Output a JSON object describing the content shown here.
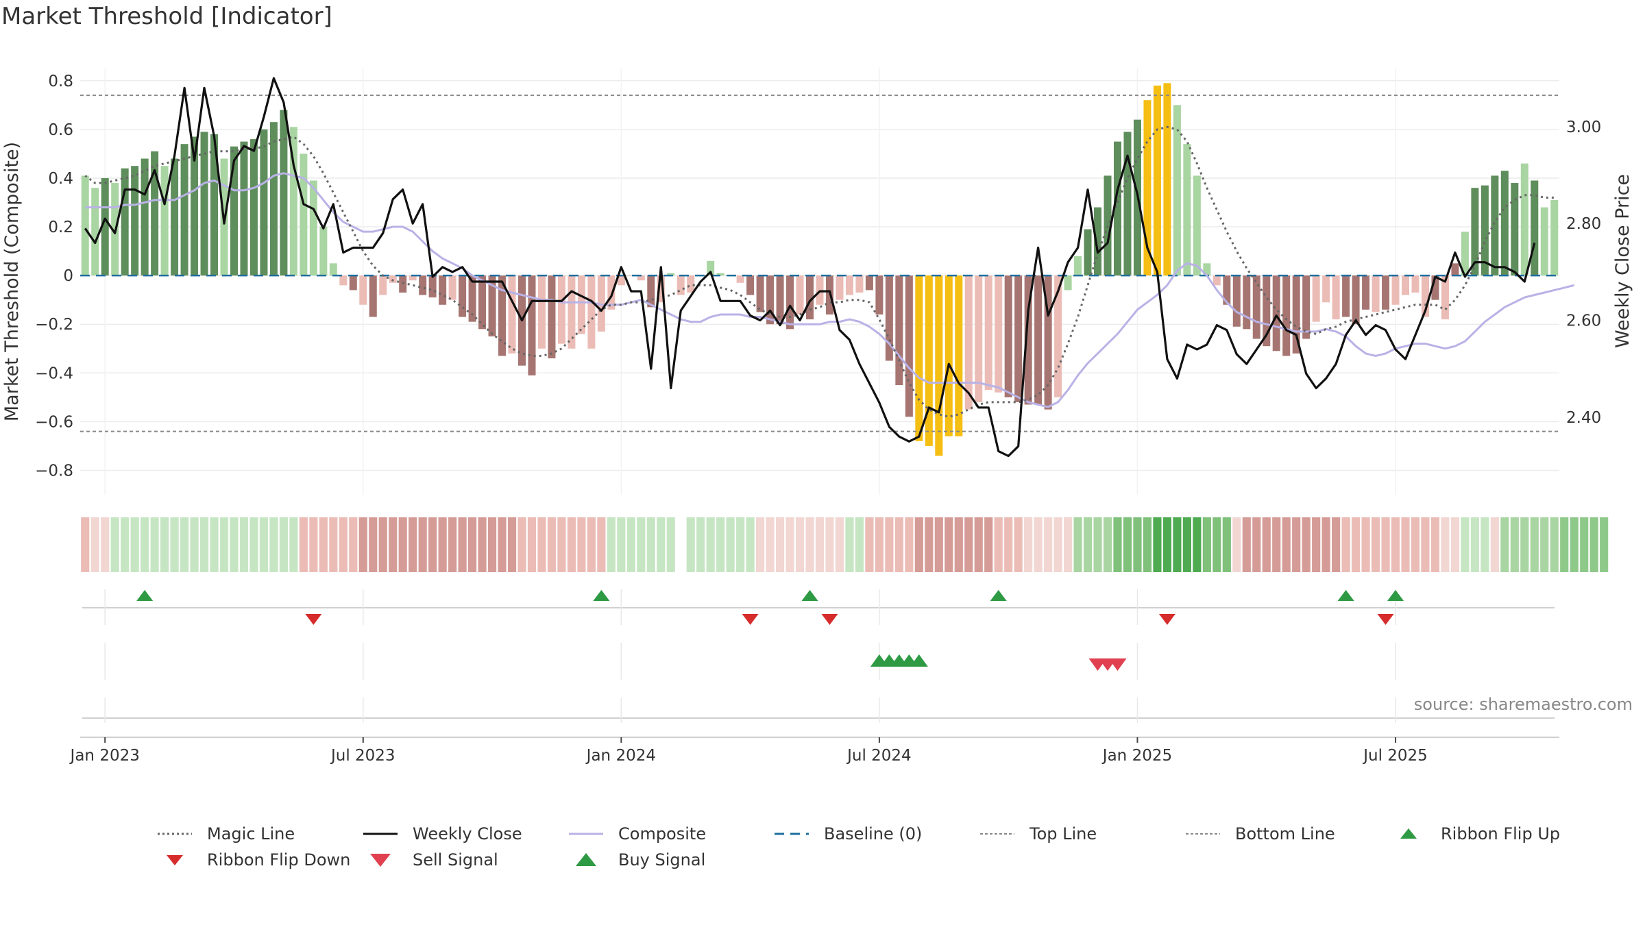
{
  "title": "Market Threshold [Indicator]",
  "source": "source: sharemaestro.com",
  "chart_data": {
    "type": "bar",
    "title": "Market Threshold [Indicator]",
    "ylabel": "Market Threshold (Composite)",
    "y2label": "Weekly Close Price",
    "ylim": [
      -0.9,
      0.85
    ],
    "y2lim": [
      2.24,
      3.12
    ],
    "yticks": [
      "0.8",
      "0.6",
      "0.4",
      "0.2",
      "0",
      "−0.2",
      "−0.4",
      "−0.6",
      "−0.8"
    ],
    "y2ticks": [
      "3.00",
      "2.80",
      "2.60",
      "2.40"
    ],
    "xticks": [
      "Jan 2023",
      "Jul 2023",
      "Jan 2024",
      "Jul 2024",
      "Jan 2025",
      "Jul 2025"
    ],
    "top_line": 0.74,
    "bottom_line": -0.64,
    "baseline": 0,
    "composite_values": [
      0.41,
      0.36,
      0.4,
      0.38,
      0.44,
      0.45,
      0.48,
      0.51,
      0.45,
      0.48,
      0.54,
      0.57,
      0.59,
      0.58,
      0.48,
      0.53,
      0.55,
      0.56,
      0.6,
      0.63,
      0.68,
      0.61,
      0.5,
      0.39,
      0.2,
      0.05,
      -0.04,
      -0.06,
      -0.12,
      -0.17,
      -0.08,
      -0.03,
      -0.07,
      -0.02,
      -0.08,
      -0.09,
      -0.12,
      -0.1,
      -0.17,
      -0.19,
      -0.22,
      -0.25,
      -0.33,
      -0.32,
      -0.37,
      -0.41,
      -0.3,
      -0.34,
      -0.28,
      -0.3,
      -0.24,
      -0.3,
      -0.23,
      -0.14,
      -0.04,
      0.0,
      -0.02,
      -0.13,
      -0.11,
      0.01,
      -0.08,
      -0.07,
      0.0,
      0.06,
      0.01,
      0.0,
      -0.03,
      -0.08,
      -0.15,
      -0.2,
      -0.2,
      -0.22,
      -0.16,
      -0.18,
      -0.12,
      -0.16,
      -0.1,
      -0.08,
      -0.07,
      -0.06,
      -0.16,
      -0.35,
      -0.45,
      -0.58,
      -0.68,
      -0.7,
      -0.74,
      -0.66,
      -0.66,
      -0.55,
      -0.52,
      -0.47,
      -0.48,
      -0.5,
      -0.52,
      -0.53,
      -0.53,
      -0.55,
      -0.5,
      -0.06,
      0.08,
      0.19,
      0.28,
      0.41,
      0.55,
      0.59,
      0.64,
      0.72,
      0.78,
      0.79,
      0.7,
      0.54,
      0.41,
      0.05,
      -0.04,
      -0.12,
      -0.21,
      -0.22,
      -0.26,
      -0.29,
      -0.31,
      -0.33,
      -0.32,
      -0.26,
      -0.19,
      -0.11,
      -0.18,
      -0.17,
      -0.2,
      -0.14,
      -0.15,
      -0.14,
      -0.12,
      -0.08,
      -0.07,
      -0.17,
      -0.1,
      -0.18,
      0.05,
      0.18,
      0.36,
      0.37,
      0.41,
      0.43,
      0.38,
      0.46,
      0.39,
      0.28,
      0.31
    ],
    "composite_bar_colors": [
      "#a9d5a2",
      "#a9d5a2",
      "#5e8e5b",
      "#a9d5a2",
      "#5e8e5b",
      "#5e8e5b",
      "#5e8e5b",
      "#5e8e5b",
      "#a9d5a2",
      "#5e8e5b",
      "#5e8e5b",
      "#5e8e5b",
      "#5e8e5b",
      "#5e8e5b",
      "#a9d5a2",
      "#5e8e5b",
      "#5e8e5b",
      "#5e8e5b",
      "#5e8e5b",
      "#5e8e5b",
      "#5e8e5b",
      "#a9d5a2",
      "#a9d5a2",
      "#a9d5a2",
      "#a9d5a2",
      "#a9d5a2",
      "#ebbcb6",
      "#a67571",
      "#ebbcb6",
      "#a67571",
      "#ebbcb6",
      "#ebbcb6",
      "#a67571",
      "#ebbcb6",
      "#a67571",
      "#a67571",
      "#a67571",
      "#ebbcb6",
      "#a67571",
      "#a67571",
      "#a67571",
      "#a67571",
      "#a67571",
      "#ebbcb6",
      "#a67571",
      "#a67571",
      "#ebbcb6",
      "#a67571",
      "#ebbcb6",
      "#ebbcb6",
      "#ebbcb6",
      "#ebbcb6",
      "#ebbcb6",
      "#ebbcb6",
      "#ebbcb6",
      "#ebbcb6",
      "#ebbcb6",
      "#a67571",
      "#ebbcb6",
      "#a9d5a2",
      "#ebbcb6",
      "#ebbcb6",
      "#a9d5a2",
      "#a9d5a2",
      "#a9d5a2",
      "#a9d5a2",
      "#ebbcb6",
      "#a67571",
      "#a67571",
      "#a67571",
      "#a67571",
      "#a67571",
      "#ebbcb6",
      "#a67571",
      "#ebbcb6",
      "#a67571",
      "#ebbcb6",
      "#ebbcb6",
      "#ebbcb6",
      "#a67571",
      "#a67571",
      "#a67571",
      "#a67571",
      "#a67571",
      "#f5be12",
      "#f5be12",
      "#f5be12",
      "#f5be12",
      "#f5be12",
      "#ebbcb6",
      "#ebbcb6",
      "#ebbcb6",
      "#ebbcb6",
      "#a67571",
      "#a67571",
      "#a67571",
      "#a67571",
      "#a67571",
      "#ebbcb6",
      "#a9d5a2",
      "#a9d5a2",
      "#5e8e5b",
      "#5e8e5b",
      "#5e8e5b",
      "#5e8e5b",
      "#5e8e5b",
      "#5e8e5b",
      "#f5be12",
      "#f5be12",
      "#f5be12",
      "#a9d5a2",
      "#a9d5a2",
      "#a9d5a2",
      "#a9d5a2",
      "#ebbcb6",
      "#a67571",
      "#a67571",
      "#a67571",
      "#a67571",
      "#a67571",
      "#a67571",
      "#a67571",
      "#a67571",
      "#a67571",
      "#ebbcb6",
      "#ebbcb6",
      "#ebbcb6",
      "#a67571",
      "#a67571",
      "#a67571",
      "#ebbcb6",
      "#a67571",
      "#ebbcb6",
      "#ebbcb6",
      "#ebbcb6",
      "#ebbcb6",
      "#a67571",
      "#ebbcb6",
      "#a67571",
      "#a9d5a2",
      "#5e8e5b",
      "#5e8e5b",
      "#5e8e5b",
      "#5e8e5b",
      "#5e8e5b",
      "#a9d5a2",
      "#5e8e5b",
      "#a9d5a2",
      "#a9d5a2",
      "#5e8e5b"
    ],
    "magic_line": [
      0.41,
      0.38,
      0.38,
      0.39,
      0.4,
      0.41,
      0.43,
      0.45,
      0.46,
      0.47,
      0.48,
      0.49,
      0.5,
      0.51,
      0.51,
      0.51,
      0.52,
      0.52,
      0.53,
      0.55,
      0.56,
      0.57,
      0.54,
      0.49,
      0.42,
      0.34,
      0.26,
      0.18,
      0.1,
      0.04,
      0.0,
      -0.02,
      -0.03,
      -0.04,
      -0.05,
      -0.06,
      -0.08,
      -0.1,
      -0.13,
      -0.16,
      -0.2,
      -0.24,
      -0.27,
      -0.3,
      -0.32,
      -0.33,
      -0.33,
      -0.32,
      -0.3,
      -0.26,
      -0.22,
      -0.18,
      -0.14,
      -0.12,
      -0.12,
      -0.11,
      -0.11,
      -0.1,
      -0.09,
      -0.08,
      -0.06,
      -0.04,
      -0.04,
      -0.04,
      -0.05,
      -0.06,
      -0.08,
      -0.11,
      -0.14,
      -0.16,
      -0.17,
      -0.17,
      -0.16,
      -0.14,
      -0.13,
      -0.11,
      -0.11,
      -0.1,
      -0.1,
      -0.11,
      -0.18,
      -0.26,
      -0.35,
      -0.44,
      -0.51,
      -0.55,
      -0.57,
      -0.58,
      -0.57,
      -0.55,
      -0.53,
      -0.52,
      -0.52,
      -0.52,
      -0.52,
      -0.51,
      -0.49,
      -0.45,
      -0.38,
      -0.28,
      -0.17,
      -0.04,
      0.09,
      0.2,
      0.3,
      0.4,
      0.48,
      0.55,
      0.6,
      0.61,
      0.6,
      0.55,
      0.46,
      0.36,
      0.27,
      0.18,
      0.1,
      0.03,
      -0.03,
      -0.09,
      -0.14,
      -0.18,
      -0.21,
      -0.23,
      -0.24,
      -0.22,
      -0.21,
      -0.19,
      -0.18,
      -0.17,
      -0.16,
      -0.15,
      -0.14,
      -0.13,
      -0.12,
      -0.12,
      -0.12,
      -0.14,
      -0.1,
      -0.04,
      0.04,
      0.14,
      0.22,
      0.28,
      0.31,
      0.33,
      0.33,
      0.32,
      0.32
    ],
    "composite_line": [
      0.28,
      0.28,
      0.28,
      0.28,
      0.29,
      0.29,
      0.3,
      0.31,
      0.31,
      0.31,
      0.33,
      0.35,
      0.38,
      0.39,
      0.37,
      0.35,
      0.35,
      0.36,
      0.38,
      0.41,
      0.42,
      0.41,
      0.4,
      0.36,
      0.31,
      0.26,
      0.22,
      0.2,
      0.18,
      0.18,
      0.19,
      0.2,
      0.2,
      0.18,
      0.14,
      0.1,
      0.07,
      0.05,
      0.03,
      0.0,
      -0.02,
      -0.04,
      -0.06,
      -0.07,
      -0.08,
      -0.09,
      -0.1,
      -0.1,
      -0.11,
      -0.11,
      -0.11,
      -0.11,
      -0.12,
      -0.12,
      -0.12,
      -0.11,
      -0.1,
      -0.12,
      -0.14,
      -0.16,
      -0.18,
      -0.19,
      -0.19,
      -0.17,
      -0.16,
      -0.16,
      -0.16,
      -0.17,
      -0.17,
      -0.18,
      -0.19,
      -0.2,
      -0.2,
      -0.2,
      -0.2,
      -0.19,
      -0.19,
      -0.18,
      -0.19,
      -0.21,
      -0.24,
      -0.28,
      -0.33,
      -0.38,
      -0.42,
      -0.44,
      -0.44,
      -0.44,
      -0.44,
      -0.44,
      -0.44,
      -0.45,
      -0.46,
      -0.48,
      -0.5,
      -0.52,
      -0.53,
      -0.54,
      -0.52,
      -0.47,
      -0.41,
      -0.36,
      -0.32,
      -0.28,
      -0.24,
      -0.19,
      -0.14,
      -0.11,
      -0.08,
      -0.04,
      0.02,
      0.05,
      0.04,
      0.0,
      -0.06,
      -0.11,
      -0.15,
      -0.17,
      -0.19,
      -0.2,
      -0.21,
      -0.22,
      -0.23,
      -0.23,
      -0.23,
      -0.22,
      -0.23,
      -0.25,
      -0.29,
      -0.32,
      -0.33,
      -0.32,
      -0.3,
      -0.29,
      -0.28,
      -0.28,
      -0.29,
      -0.3,
      -0.29,
      -0.27,
      -0.23,
      -0.19,
      -0.16,
      -0.13,
      -0.11,
      -0.09,
      -0.08,
      -0.07,
      -0.06,
      -0.05,
      -0.04
    ],
    "weekly_close": [
      2.79,
      2.76,
      2.81,
      2.78,
      2.87,
      2.87,
      2.86,
      2.91,
      2.84,
      2.94,
      3.08,
      2.93,
      3.08,
      2.98,
      2.8,
      2.93,
      2.96,
      2.95,
      3.02,
      3.1,
      3.05,
      2.92,
      2.84,
      2.83,
      2.79,
      2.84,
      2.74,
      2.75,
      2.75,
      2.75,
      2.78,
      2.85,
      2.87,
      2.8,
      2.84,
      2.69,
      2.71,
      2.7,
      2.71,
      2.68,
      2.68,
      2.68,
      2.68,
      2.64,
      2.6,
      2.64,
      2.64,
      2.64,
      2.64,
      2.66,
      2.65,
      2.64,
      2.62,
      2.65,
      2.71,
      2.66,
      2.66,
      2.5,
      2.71,
      2.46,
      2.62,
      2.65,
      2.68,
      2.7,
      2.64,
      2.64,
      2.64,
      2.61,
      2.6,
      2.62,
      2.59,
      2.63,
      2.6,
      2.64,
      2.66,
      2.66,
      2.58,
      2.56,
      2.51,
      2.47,
      2.43,
      2.38,
      2.36,
      2.35,
      2.36,
      2.42,
      2.41,
      2.51,
      2.47,
      2.45,
      2.42,
      2.42,
      2.33,
      2.32,
      2.34,
      2.62,
      2.75,
      2.61,
      2.66,
      2.72,
      2.75,
      2.87,
      2.74,
      2.76,
      2.87,
      2.94,
      2.86,
      2.75,
      2.7,
      2.52,
      2.48,
      2.55,
      2.54,
      2.55,
      2.59,
      2.58,
      2.53,
      2.51,
      2.54,
      2.57,
      2.61,
      2.58,
      2.57,
      2.49,
      2.46,
      2.48,
      2.51,
      2.57,
      2.6,
      2.57,
      2.59,
      2.58,
      2.54,
      2.52,
      2.57,
      2.62,
      2.69,
      2.68,
      2.74,
      2.69,
      2.72,
      2.72,
      2.71,
      2.71,
      2.7,
      2.68,
      2.76
    ],
    "ribbon_colors": [
      "#ebbcb6",
      "#f1d6d2",
      "#f1d6d2",
      "#c6e6c3",
      "#c6e6c3",
      "#c6e6c3",
      "#c6e6c3",
      "#c6e6c3",
      "#c6e6c3",
      "#c6e6c3",
      "#c6e6c3",
      "#c6e6c3",
      "#c6e6c3",
      "#c6e6c3",
      "#c6e6c3",
      "#c6e6c3",
      "#c6e6c3",
      "#c6e6c3",
      "#c6e6c3",
      "#c6e6c3",
      "#c6e6c3",
      "#c6e6c3",
      "#ebbcb6",
      "#ebbcb6",
      "#ebbcb6",
      "#ebbcb6",
      "#ebbcb6",
      "#ebbcb6",
      "#d59c97",
      "#d59c97",
      "#d59c97",
      "#d59c97",
      "#d59c97",
      "#d59c97",
      "#d59c97",
      "#d59c97",
      "#d59c97",
      "#d59c97",
      "#d59c97",
      "#d59c97",
      "#d59c97",
      "#d59c97",
      "#d59c97",
      "#d59c97",
      "#ebbcb6",
      "#ebbcb6",
      "#ebbcb6",
      "#ebbcb6",
      "#ebbcb6",
      "#ebbcb6",
      "#ebbcb6",
      "#ebbcb6",
      "#ebbcb6",
      "#c6e6c3",
      "#c6e6c3",
      "#c6e6c3",
      "#c6e6c3",
      "#c6e6c3",
      "#c6e6c3",
      "#c6e6c3",
      "#ffffff",
      "#c6e6c3",
      "#c6e6c3",
      "#c6e6c3",
      "#c6e6c3",
      "#c6e6c3",
      "#c6e6c3",
      "#c6e6c3",
      "#f1d6d2",
      "#f1d6d2",
      "#f1d6d2",
      "#f1d6d2",
      "#f1d6d2",
      "#f1d6d2",
      "#f1d6d2",
      "#f1d6d2",
      "#f1d6d2",
      "#c6e6c3",
      "#c6e6c3",
      "#ebbcb6",
      "#ebbcb6",
      "#ebbcb6",
      "#ebbcb6",
      "#ebbcb6",
      "#d59c97",
      "#d59c97",
      "#d59c97",
      "#d59c97",
      "#d59c97",
      "#d59c97",
      "#d59c97",
      "#d59c97",
      "#ebbcb6",
      "#ebbcb6",
      "#ebbcb6",
      "#f1d6d2",
      "#f1d6d2",
      "#f1d6d2",
      "#f1d6d2",
      "#f1d6d2",
      "#a9d5a2",
      "#a9d5a2",
      "#a9d5a2",
      "#a9d5a2",
      "#7fc07a",
      "#7fc07a",
      "#7fc07a",
      "#7fc07a",
      "#4fab52",
      "#4fab52",
      "#4fab52",
      "#4fab52",
      "#4fab52",
      "#7fc07a",
      "#7fc07a",
      "#7fc07a",
      "#f1d6d2",
      "#d59c97",
      "#d59c97",
      "#d59c97",
      "#d59c97",
      "#d59c97",
      "#d59c97",
      "#d59c97",
      "#d59c97",
      "#d59c97",
      "#d59c97",
      "#ebbcb6",
      "#ebbcb6",
      "#ebbcb6",
      "#ebbcb6",
      "#ebbcb6",
      "#ebbcb6",
      "#ebbcb6",
      "#ebbcb6",
      "#ebbcb6",
      "#ebbcb6",
      "#f1d6d2",
      "#f1d6d2",
      "#c6e6c3",
      "#c6e6c3",
      "#c6e6c3",
      "#f1d6d2",
      "#a9d5a2",
      "#a9d5a2",
      "#a9d5a2",
      "#a9d5a2",
      "#a9d5a2",
      "#a9d5a2",
      "#8fc98a",
      "#8fc98a",
      "#8fc98a",
      "#8fc98a",
      "#8fc98a"
    ],
    "ribbon_flip_up_weeks": [
      6,
      52,
      73,
      92,
      127,
      132
    ],
    "ribbon_flip_down_weeks": [
      23,
      67,
      75,
      109,
      131
    ],
    "buy_signal_weeks": [
      80,
      81,
      82,
      83,
      84
    ],
    "sell_signal_weeks": [
      102,
      103,
      104
    ],
    "date_ticks_week_index": [
      2,
      28,
      54,
      80,
      106,
      132
    ]
  },
  "legend": [
    {
      "label": "Magic Line",
      "symbol": "dotted-line",
      "color": "#666666"
    },
    {
      "label": "Weekly Close",
      "symbol": "solid-line",
      "color": "#111111"
    },
    {
      "label": "Composite",
      "symbol": "solid-line",
      "color": "#b9b2e6"
    },
    {
      "label": "Baseline (0)",
      "symbol": "dashed-line",
      "color": "#1f6f9f"
    },
    {
      "label": "Top Line",
      "symbol": "dotted-line",
      "color": "#888888"
    },
    {
      "label": "Bottom Line",
      "symbol": "dotted-line",
      "color": "#888888"
    },
    {
      "label": "Ribbon Flip Up",
      "symbol": "triangle-up",
      "color": "#2e9a44"
    },
    {
      "label": "Ribbon Flip Down",
      "symbol": "triangle-down",
      "color": "#d62c2c"
    },
    {
      "label": "Sell Signal",
      "symbol": "triangle-down",
      "color": "#e04050"
    },
    {
      "label": "Buy Signal",
      "symbol": "triangle-up",
      "color": "#2e9a44"
    }
  ]
}
